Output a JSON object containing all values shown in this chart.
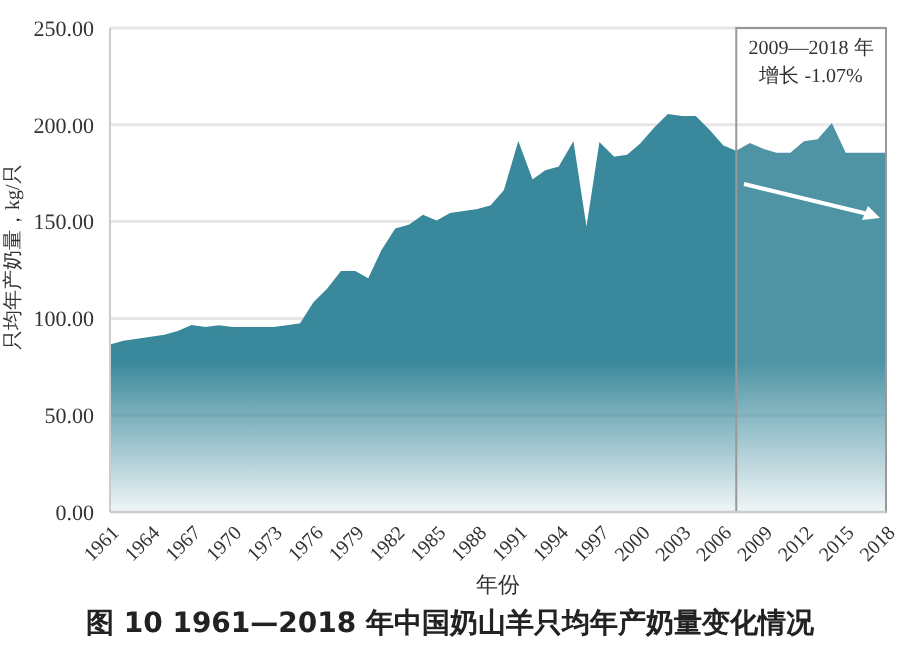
{
  "chart_data": {
    "type": "area",
    "title": "图 10  1961—2018 年中国奶山羊只均年产奶量变化情况",
    "xlabel": "年份",
    "ylabel": "只均年产奶量，kg/只",
    "x": [
      1961,
      1962,
      1963,
      1964,
      1965,
      1966,
      1967,
      1968,
      1969,
      1970,
      1971,
      1972,
      1973,
      1974,
      1975,
      1976,
      1977,
      1978,
      1979,
      1980,
      1981,
      1982,
      1983,
      1984,
      1985,
      1986,
      1987,
      1988,
      1989,
      1990,
      1991,
      1992,
      1993,
      1994,
      1995,
      1996,
      1997,
      1998,
      1999,
      2000,
      2001,
      2002,
      2003,
      2004,
      2005,
      2006,
      2007,
      2008,
      2009,
      2010,
      2011,
      2012,
      2013,
      2014,
      2015,
      2016,
      2017,
      2018
    ],
    "series": [
      {
        "color": "#3a889b",
        "values": [
          86,
          88,
          89,
          90,
          91,
          93,
          96,
          95,
          96,
          95,
          95,
          95,
          95,
          96,
          97,
          108,
          115,
          124,
          124,
          120,
          135,
          146,
          148,
          153,
          150,
          154,
          155,
          156,
          158,
          166,
          190,
          171,
          176,
          178,
          190,
          144,
          190,
          183,
          184,
          190,
          198,
          205,
          204,
          204,
          197,
          189,
          186,
          190,
          187,
          185,
          185,
          191,
          192,
          200,
          185,
          185,
          185,
          185
        ]
      }
    ],
    "xlim": [
      1961,
      2018
    ],
    "xticks": [
      1961,
      1964,
      1967,
      1970,
      1973,
      1976,
      1979,
      1982,
      1985,
      1988,
      1991,
      1994,
      1997,
      2000,
      2003,
      2006,
      2009,
      2012,
      2015,
      2018
    ],
    "ylim": [
      0,
      250
    ],
    "yticks": [
      {
        "value": 0,
        "label": "0.00"
      },
      {
        "value": 50,
        "label": "50.00"
      },
      {
        "value": 100,
        "label": "100.00"
      },
      {
        "value": 150,
        "label": "150.00"
      },
      {
        "value": 200,
        "label": "200.00"
      },
      {
        "value": 250,
        "label": "250.00"
      }
    ],
    "grid": "y",
    "legend": false,
    "bands": [
      {
        "axis": "x",
        "from": 2007,
        "to": 2018,
        "label": "2009—2018 年增长 -1.07%",
        "color": "#ffffff"
      }
    ]
  }
}
